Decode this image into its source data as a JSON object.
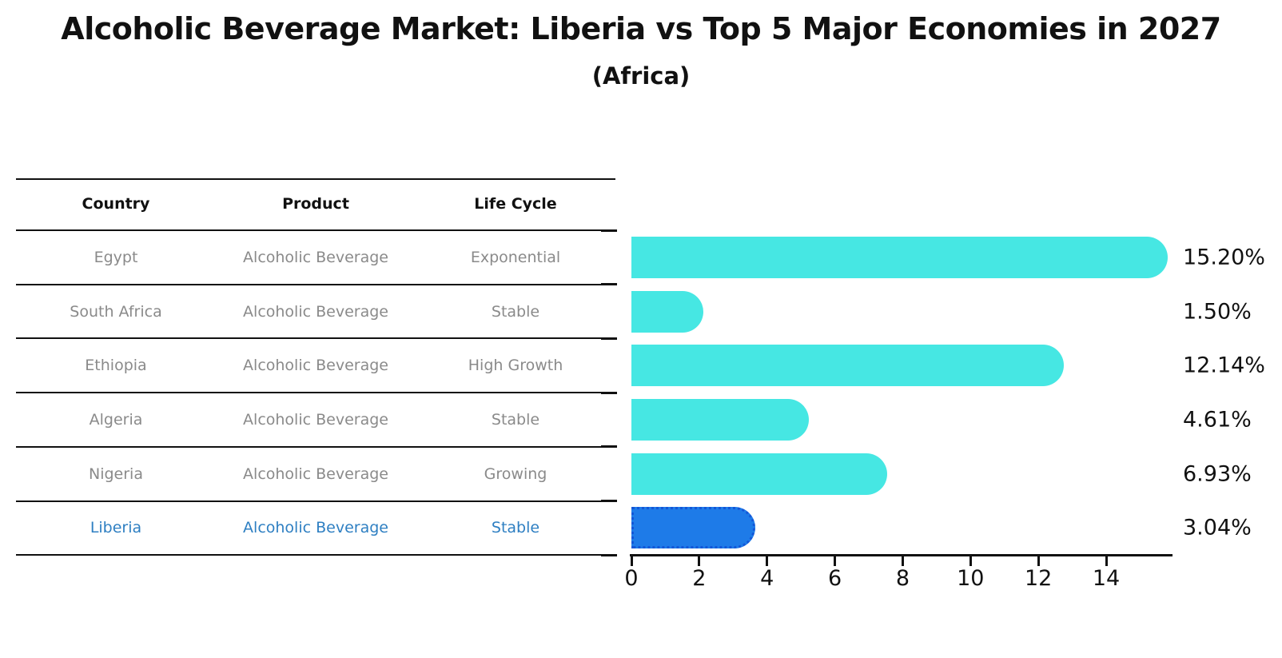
{
  "title": "Alcoholic Beverage Market: Liberia vs Top 5 Major Economies in 2027",
  "subtitle": "(Africa)",
  "table": {
    "headers": [
      "Country",
      "Product",
      "Life Cycle"
    ],
    "rows": [
      {
        "country": "Egypt",
        "product": "Alcoholic Beverage",
        "life_cycle": "Exponential"
      },
      {
        "country": "South Africa",
        "product": "Alcoholic Beverage",
        "life_cycle": "Stable"
      },
      {
        "country": "Ethiopia",
        "product": "Alcoholic Beverage",
        "life_cycle": "High Growth"
      },
      {
        "country": "Algeria",
        "product": "Alcoholic Beverage",
        "life_cycle": "Stable"
      },
      {
        "country": "Nigeria",
        "product": "Alcoholic Beverage",
        "life_cycle": "Growing"
      },
      {
        "country": "Liberia",
        "product": "Alcoholic Beverage",
        "life_cycle": "Stable"
      }
    ]
  },
  "chart_data": {
    "type": "bar",
    "orientation": "horizontal",
    "categories": [
      "Egypt",
      "South Africa",
      "Ethiopia",
      "Algeria",
      "Nigeria",
      "Liberia"
    ],
    "values": [
      15.2,
      1.5,
      12.14,
      4.61,
      6.93,
      3.04
    ],
    "value_labels": [
      "15.20%",
      "1.50%",
      "12.14%",
      "4.61%",
      "6.93%",
      "3.04%"
    ],
    "title": "Alcoholic Beverage Market: Liberia vs Top 5 Major Economies in 2027 (Africa)",
    "xlabel": "",
    "ylabel": "",
    "xlim": [
      0,
      15.95
    ],
    "xticks": [
      0,
      2,
      4,
      6,
      8,
      10,
      12,
      14
    ],
    "grid": false,
    "legend": "none",
    "highlight_category": "Liberia",
    "highlight_index": 5
  },
  "colors": {
    "bar": "#46e7e3",
    "highlight_bar": "#1e7be8",
    "highlight_border": "#1357d8",
    "highlight_text": "#2e7fc2",
    "table_text": "#8a8a8a",
    "text": "#111111",
    "axis": "#111111"
  }
}
